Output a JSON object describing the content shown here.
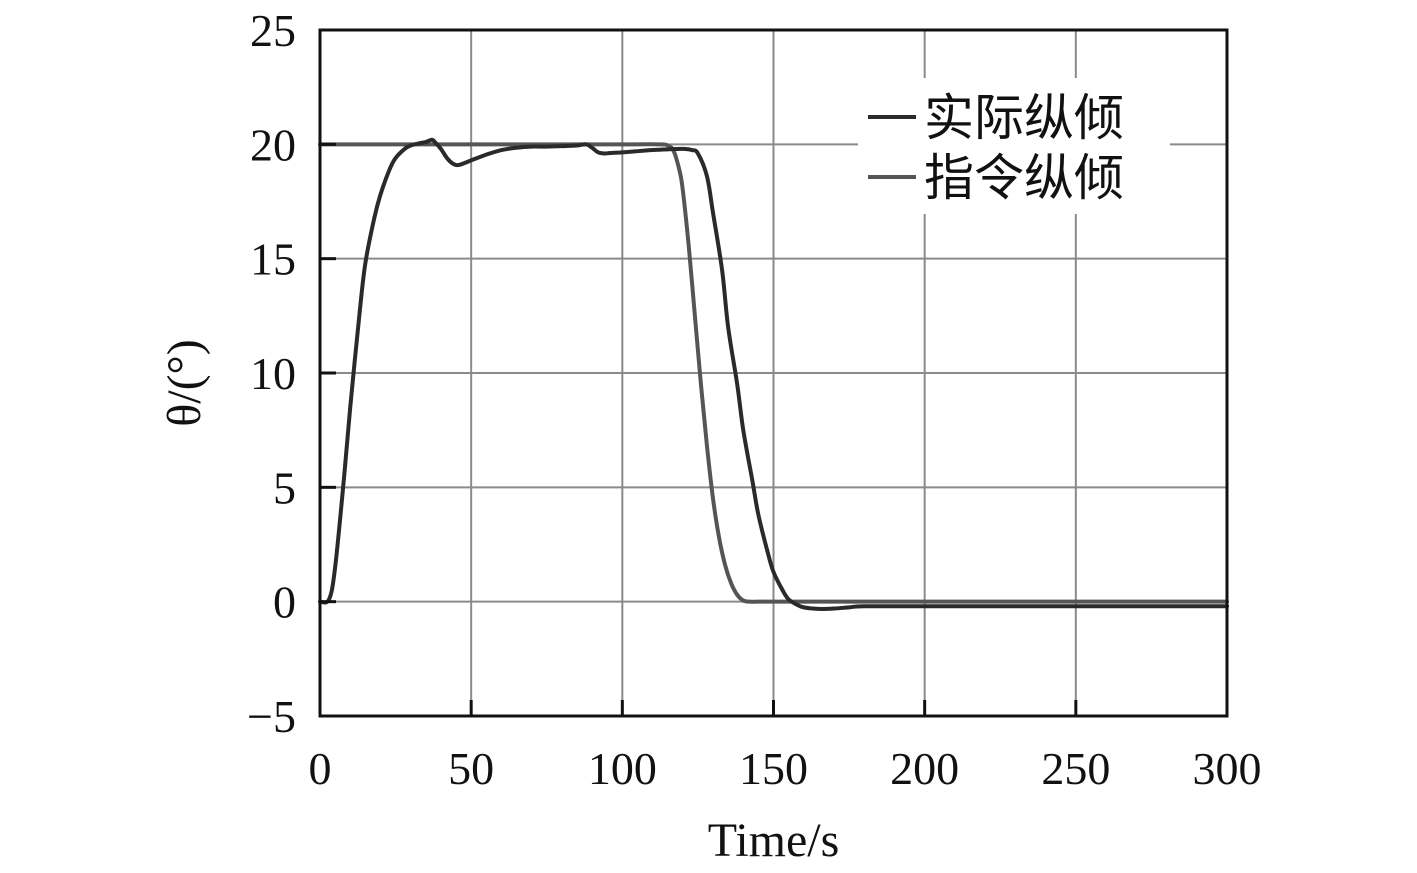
{
  "chart_data": {
    "type": "line",
    "xlabel": "Time/s",
    "ylabel": "θ/(°)",
    "xlim": [
      0,
      300
    ],
    "ylim": [
      -5,
      25
    ],
    "xticks": [
      0,
      50,
      100,
      150,
      200,
      250,
      300
    ],
    "yticks": [
      -5,
      0,
      5,
      10,
      15,
      20,
      25
    ],
    "xtick_labels": [
      "0",
      "50",
      "100",
      "150",
      "200",
      "250",
      "300"
    ],
    "ytick_labels": [
      "−5",
      "0",
      "5",
      "10",
      "15",
      "20",
      "25"
    ],
    "grid": true,
    "legend_position": "top-right",
    "series": [
      {
        "name": "实际纵倾",
        "color": "#2a2a2a",
        "x": [
          0,
          3,
          5,
          8,
          10,
          13,
          15,
          18,
          20,
          23,
          25,
          28,
          30,
          33,
          35,
          37,
          38,
          40,
          42,
          44,
          46,
          50,
          55,
          60,
          65,
          70,
          75,
          80,
          85,
          88,
          90,
          92,
          94,
          96,
          100,
          105,
          110,
          115,
          120,
          123,
          125,
          128,
          130,
          133,
          135,
          138,
          140,
          143,
          145,
          148,
          150,
          153,
          155,
          158,
          160,
          163,
          166,
          170,
          175,
          180,
          200,
          250,
          300
        ],
        "y": [
          0,
          0.1,
          1.5,
          5.5,
          8.5,
          12.5,
          14.8,
          16.8,
          17.8,
          18.9,
          19.4,
          19.8,
          19.95,
          20.05,
          20.1,
          20.2,
          20.1,
          19.8,
          19.4,
          19.15,
          19.1,
          19.3,
          19.55,
          19.75,
          19.85,
          19.9,
          19.9,
          19.92,
          19.95,
          20.0,
          19.85,
          19.65,
          19.6,
          19.62,
          19.65,
          19.7,
          19.75,
          19.78,
          19.8,
          19.75,
          19.6,
          18.6,
          17.0,
          14.5,
          12.0,
          9.5,
          7.5,
          5.3,
          3.8,
          2.2,
          1.3,
          0.5,
          0.1,
          -0.15,
          -0.25,
          -0.3,
          -0.32,
          -0.3,
          -0.25,
          -0.2,
          -0.2,
          -0.2,
          -0.2
        ]
      },
      {
        "name": "指令纵倾",
        "color": "#555555",
        "x": [
          0,
          50,
          100,
          112,
          115,
          117,
          119,
          120,
          122,
          124,
          126,
          128,
          130,
          132,
          134,
          136,
          138,
          140,
          142,
          145,
          150,
          200,
          250,
          300
        ],
        "y": [
          20,
          20,
          20,
          20,
          19.95,
          19.7,
          18.8,
          18.0,
          15.5,
          12.5,
          9.5,
          6.8,
          4.5,
          2.8,
          1.6,
          0.8,
          0.3,
          0.05,
          0,
          0,
          0,
          0,
          0,
          0
        ]
      }
    ]
  }
}
